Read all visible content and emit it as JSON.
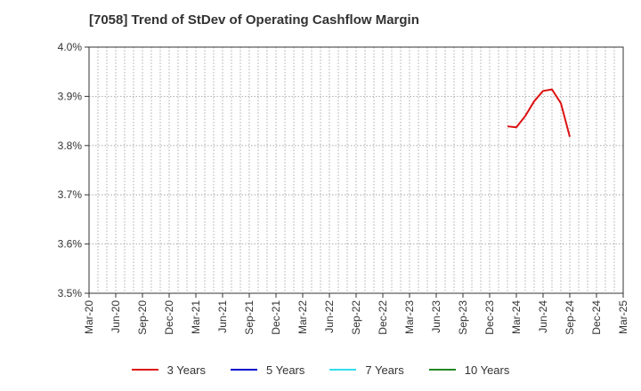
{
  "chart_data": {
    "type": "line",
    "title": "[7058]  Trend of StDev of Operating Cashflow Margin",
    "xlabel": "",
    "ylabel": "",
    "x_ticks": [
      "Mar-20",
      "Jun-20",
      "Sep-20",
      "Dec-20",
      "Mar-21",
      "Jun-21",
      "Sep-21",
      "Dec-21",
      "Mar-22",
      "Jun-22",
      "Sep-22",
      "Dec-22",
      "Mar-23",
      "Jun-23",
      "Sep-23",
      "Dec-23",
      "Mar-24",
      "Jun-24",
      "Sep-24",
      "Dec-24",
      "Mar-25"
    ],
    "y_ticks": [
      "3.5%",
      "3.6%",
      "3.7%",
      "3.8%",
      "3.9%",
      "4.0%"
    ],
    "ylim": [
      3.5,
      4.0
    ],
    "xlim": [
      "2020-03",
      "2025-03"
    ],
    "grid": true,
    "legend_position": "bottom",
    "series": [
      {
        "name": "3 Years",
        "color": "#dd1111",
        "points": [
          {
            "x": "2024-02",
            "y": 3.839
          },
          {
            "x": "2024-03",
            "y": 3.837
          },
          {
            "x": "2024-04",
            "y": 3.86
          },
          {
            "x": "2024-05",
            "y": 3.89
          },
          {
            "x": "2024-06",
            "y": 3.911
          },
          {
            "x": "2024-07",
            "y": 3.914
          },
          {
            "x": "2024-08",
            "y": 3.886
          },
          {
            "x": "2024-09",
            "y": 3.818
          }
        ]
      },
      {
        "name": "5 Years",
        "color": "#0000cc",
        "points": []
      },
      {
        "name": "7 Years",
        "color": "#33ddee",
        "points": []
      },
      {
        "name": "10 Years",
        "color": "#228822",
        "points": []
      }
    ]
  }
}
